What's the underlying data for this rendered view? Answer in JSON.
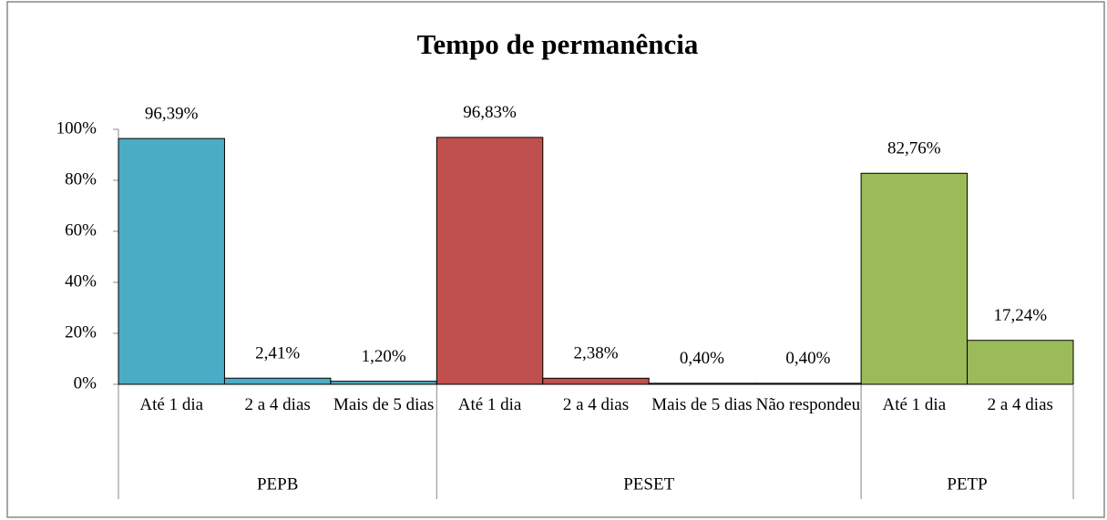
{
  "chart_data": {
    "type": "bar",
    "title": "Tempo de permanência",
    "ylim": [
      0,
      100
    ],
    "yticks": [
      {
        "value": 0,
        "label": "0%"
      },
      {
        "value": 20,
        "label": "20%"
      },
      {
        "value": 40,
        "label": "40%"
      },
      {
        "value": 60,
        "label": "60%"
      },
      {
        "value": 80,
        "label": "80%"
      },
      {
        "value": 100,
        "label": "100%"
      }
    ],
    "groups": [
      {
        "name": "PEPB",
        "color": "#4bacc6",
        "categories": [
          "Até 1 dia",
          "2 a 4 dias",
          "Mais de 5 dias"
        ],
        "values": [
          96.39,
          2.41,
          1.2
        ],
        "value_labels": [
          "96,39%",
          "2,41%",
          "1,20%"
        ]
      },
      {
        "name": "PESET",
        "color": "#c0504d",
        "categories": [
          "Até 1 dia",
          "2 a 4 dias",
          "Mais de 5 dias",
          "Não respondeu"
        ],
        "values": [
          96.83,
          2.38,
          0.4,
          0.4
        ],
        "value_labels": [
          "96,83%",
          "2,38%",
          "0,40%",
          "0,40%"
        ]
      },
      {
        "name": "PETP",
        "color": "#9bbb59",
        "categories": [
          "Até 1 dia",
          "2 a 4 dias"
        ],
        "values": [
          82.76,
          17.24
        ],
        "value_labels": [
          "82,76%",
          "17,24%"
        ]
      }
    ]
  }
}
